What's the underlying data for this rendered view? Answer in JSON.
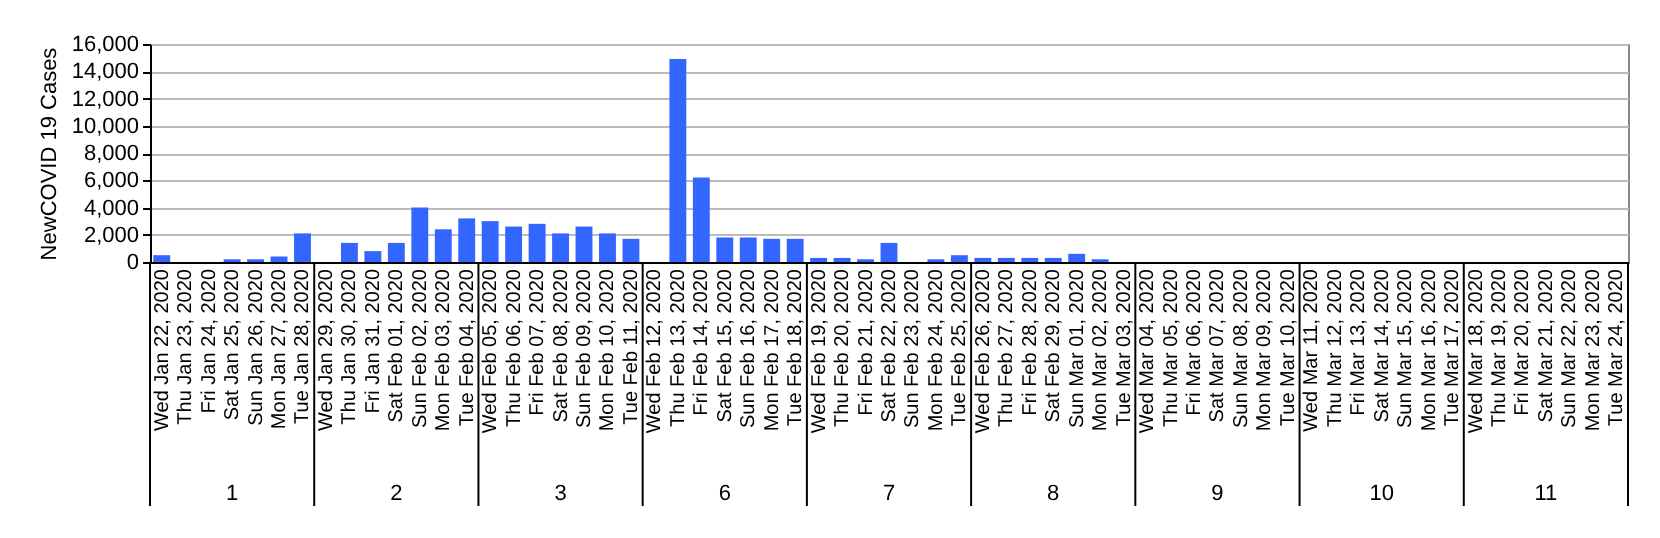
{
  "chart_data": {
    "type": "bar",
    "ylabel": "NewCOVID 19 Cases",
    "categories": [
      "Wed Jan 22, 2020",
      "Thu Jan 23, 2020",
      "Fri Jan 24, 2020",
      "Sat Jan 25, 2020",
      "Sun Jan 26, 2020",
      "Mon Jan 27, 2020",
      "Tue Jan 28, 2020",
      "Wed Jan 29, 2020",
      "Thu Jan 30, 2020",
      "Fri Jan 31, 2020",
      "Sat Feb 01, 2020",
      "Sun Feb 02, 2020",
      "Mon Feb 03, 2020",
      "Tue Feb 04, 2020",
      "Wed Feb 05, 2020",
      "Thu Feb 06, 2020",
      "Fri Feb 07, 2020",
      "Sat Feb 08, 2020",
      "Sun Feb 09, 2020",
      "Mon Feb 10, 2020",
      "Tue Feb 11, 2020",
      "Wed Feb 12, 2020",
      "Thu Feb 13, 2020",
      "Fri Feb 14, 2020",
      "Sat Feb 15, 2020",
      "Sun Feb 16, 2020",
      "Mon Feb 17, 2020",
      "Tue Feb 18, 2020",
      "Wed Feb 19, 2020",
      "Thu Feb 20, 2020",
      "Fri Feb 21, 2020",
      "Sat Feb 22, 2020",
      "Sun Feb 23, 2020",
      "Mon Feb 24, 2020",
      "Tue Feb 25, 2020",
      "Wed Feb 26, 2020",
      "Thu Feb 27, 2020",
      "Fri Feb 28, 2020",
      "Sat Feb 29, 2020",
      "Sun Mar 01, 2020",
      "Mon Mar 02, 2020",
      "Tue Mar 03, 2020",
      "Wed Mar 04, 2020",
      "Thu Mar 05, 2020",
      "Fri Mar 06, 2020",
      "Sat Mar 07, 2020",
      "Sun Mar 08, 2020",
      "Mon Mar 09, 2020",
      "Tue Mar 10, 2020",
      "Wed Mar 11, 2020",
      "Thu Mar 12, 2020",
      "Fri Mar 13, 2020",
      "Sat Mar 14, 2020",
      "Sun Mar 15, 2020",
      "Mon Mar 16, 2020",
      "Tue Mar 17, 2020",
      "Wed Mar 18, 2020",
      "Thu Mar 19, 2020",
      "Fri Mar 20, 2020",
      "Sat Mar 21, 2020",
      "Sun Mar 22, 2020",
      "Mon Mar 23, 2020",
      "Tue Mar 24, 2020"
    ],
    "values": [
      500,
      0,
      0,
      200,
      200,
      400,
      2100,
      0,
      1400,
      800,
      1400,
      4000,
      2400,
      3200,
      3000,
      2600,
      2800,
      2100,
      2600,
      2100,
      1700,
      0,
      14900,
      6200,
      1800,
      1800,
      1700,
      1700,
      300,
      300,
      200,
      1400,
      0,
      200,
      500,
      300,
      300,
      300,
      300,
      600,
      200,
      0,
      0,
      0,
      0,
      0,
      0,
      0,
      0,
      0,
      0,
      0,
      0,
      0,
      0,
      0,
      0,
      0,
      0,
      0,
      0,
      0,
      0
    ],
    "color": "#3366ff",
    "ylim": [
      0,
      16000
    ],
    "yticks": [
      {
        "value": 0,
        "label": "0"
      },
      {
        "value": 2000,
        "label": "2,000"
      },
      {
        "value": 4000,
        "label": "4,000"
      },
      {
        "value": 6000,
        "label": "6,000"
      },
      {
        "value": 8000,
        "label": "8,000"
      },
      {
        "value": 10000,
        "label": "10,000"
      },
      {
        "value": 12000,
        "label": "12,000"
      },
      {
        "value": 14000,
        "label": "14,000"
      },
      {
        "value": 16000,
        "label": "16,000"
      }
    ],
    "grid": "y",
    "annotations": [
      "1",
      "2",
      "3",
      "6",
      "7",
      "8",
      "9",
      "10",
      "11"
    ]
  }
}
